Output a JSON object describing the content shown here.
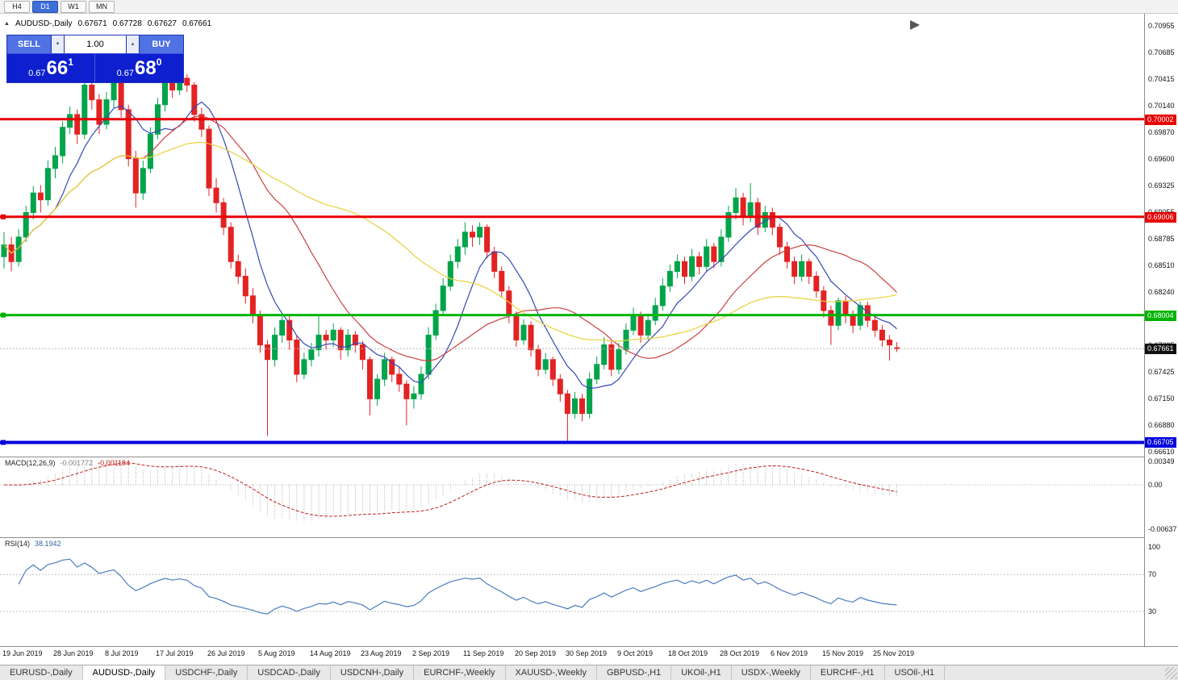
{
  "toolbar": {
    "timeframes": [
      {
        "label": "H4",
        "active": false
      },
      {
        "label": "D1",
        "active": true
      },
      {
        "label": "W1",
        "active": false
      },
      {
        "label": "MN",
        "active": false
      }
    ]
  },
  "chart_header": {
    "collapse_icon": "▲",
    "symbol": "AUDUSD-,Daily",
    "open": "0.67671",
    "high": "0.67728",
    "low": "0.67627",
    "close": "0.67661"
  },
  "trade_panel": {
    "sell_label": "SELL",
    "buy_label": "BUY",
    "volume": "1.00",
    "spin_down": "▼",
    "spin_up": "▲",
    "sell_price": {
      "prefix": "0.67",
      "big": "66",
      "sup": "1"
    },
    "buy_price": {
      "prefix": "0.67",
      "big": "68",
      "sup": "0"
    }
  },
  "axis": {
    "price_labels": [
      "0.70955",
      "0.70685",
      "0.70415",
      "0.70140",
      "0.69870",
      "0.69600",
      "0.69325",
      "0.69055",
      "0.68785",
      "0.68510",
      "0.68240",
      "0.67970",
      "0.67695",
      "0.67425",
      "0.67150",
      "0.66880",
      "0.66610"
    ]
  },
  "hlines": [
    {
      "label": "0.70002",
      "price": 0.70002,
      "color": "#e80000",
      "width": 3,
      "anchor": false
    },
    {
      "label": "0.69006",
      "price": 0.69006,
      "color": "#e80000",
      "width": 3,
      "anchor": true
    },
    {
      "label": "0.68004",
      "price": 0.68004,
      "color": "#00b400",
      "width": 3,
      "anchor": true
    },
    {
      "label": "0.66705",
      "price": 0.66705,
      "color": "#0000dd",
      "width": 4,
      "anchor": true
    }
  ],
  "current_price": {
    "label": "0.67661",
    "value": 0.67661
  },
  "macd": {
    "title": "MACD(12,26,9)",
    "main_value": "-0.001772",
    "signal_value": "-0.001184",
    "axis_labels": [
      "0.00349",
      "0.00",
      "-0.00637"
    ]
  },
  "rsi": {
    "title": "RSI(14)",
    "value": "38.1942",
    "axis_labels": [
      "100",
      "70",
      "30"
    ],
    "levels": [
      70,
      30
    ]
  },
  "dates": [
    {
      "text": "19 Jun 2019",
      "bar": 0
    },
    {
      "text": "28 Jun 2019",
      "bar": 7
    },
    {
      "text": "8 Jul 2019",
      "bar": 14
    },
    {
      "text": "17 Jul 2019",
      "bar": 21
    },
    {
      "text": "26 Jul 2019",
      "bar": 28
    },
    {
      "text": "5 Aug 2019",
      "bar": 35
    },
    {
      "text": "14 Aug 2019",
      "bar": 42
    },
    {
      "text": "23 Aug 2019",
      "bar": 49
    },
    {
      "text": "2 Sep 2019",
      "bar": 56
    },
    {
      "text": "11 Sep 2019",
      "bar": 63
    },
    {
      "text": "20 Sep 2019",
      "bar": 70
    },
    {
      "text": "30 Sep 2019",
      "bar": 77
    },
    {
      "text": "9 Oct 2019",
      "bar": 84
    },
    {
      "text": "18 Oct 2019",
      "bar": 91
    },
    {
      "text": "28 Oct 2019",
      "bar": 98
    },
    {
      "text": "6 Nov 2019",
      "bar": 105
    },
    {
      "text": "15 Nov 2019",
      "bar": 112
    },
    {
      "text": "25 Nov 2019",
      "bar": 119
    }
  ],
  "tabs": [
    {
      "label": "EURUSD-,Daily",
      "active": false
    },
    {
      "label": "AUDUSD-,Daily",
      "active": true
    },
    {
      "label": "USDCHF-,Daily",
      "active": false
    },
    {
      "label": "USDCAD-,Daily",
      "active": false
    },
    {
      "label": "USDCNH-,Daily",
      "active": false
    },
    {
      "label": "EURCHF-,Weekly",
      "active": false
    },
    {
      "label": "XAUUSD-,Weekly",
      "active": false
    },
    {
      "label": "GBPUSD-,H1",
      "active": false
    },
    {
      "label": "UKOil-,H1",
      "active": false
    },
    {
      "label": "USDX-,Weekly",
      "active": false
    },
    {
      "label": "EURCHF-,H1",
      "active": false
    },
    {
      "label": "USOil-,H1",
      "active": false
    }
  ],
  "chart_data": {
    "type": "candlestick",
    "symbol": "AUDUSD-",
    "timeframe": "Daily",
    "title": "AUDUSD-,Daily",
    "ohlc_last": {
      "open": 0.67671,
      "high": 0.67728,
      "low": 0.67627,
      "close": 0.67661
    },
    "y_axis": {
      "min": 0.6661,
      "max": 0.70955
    },
    "horizontal_levels": [
      0.70002,
      0.69006,
      0.68004,
      0.66705
    ],
    "colors": {
      "up": "#00a44a",
      "down": "#e32222"
    },
    "moving_averages": [
      {
        "name": "fast",
        "color": "#3348b5",
        "period": 8
      },
      {
        "name": "medium",
        "color": "#cc4040",
        "period": 20
      },
      {
        "name": "slow",
        "color": "#e6d23c",
        "period": 45
      }
    ],
    "indicators": [
      {
        "name": "MACD",
        "params": "12,26,9",
        "main": -0.001772,
        "signal": -0.001184,
        "axis_max": 0.00349,
        "axis_min": -0.00637
      },
      {
        "name": "RSI",
        "params": "14",
        "value": 38.1942,
        "levels": [
          30,
          70
        ]
      }
    ],
    "candles": [
      [
        0.686,
        0.6885,
        0.6848,
        0.6872
      ],
      [
        0.6872,
        0.688,
        0.6845,
        0.6855
      ],
      [
        0.6855,
        0.6888,
        0.685,
        0.688
      ],
      [
        0.688,
        0.6912,
        0.6875,
        0.6905
      ],
      [
        0.6905,
        0.6932,
        0.6898,
        0.6925
      ],
      [
        0.6925,
        0.6933,
        0.6905,
        0.6918
      ],
      [
        0.6918,
        0.6958,
        0.6912,
        0.695
      ],
      [
        0.695,
        0.6972,
        0.694,
        0.6963
      ],
      [
        0.6963,
        0.6998,
        0.6955,
        0.6992
      ],
      [
        0.6992,
        0.7013,
        0.6985,
        0.7005
      ],
      [
        0.7005,
        0.701,
        0.6975,
        0.6985
      ],
      [
        0.6985,
        0.7041,
        0.698,
        0.7035
      ],
      [
        0.7035,
        0.704,
        0.701,
        0.702
      ],
      [
        0.702,
        0.7026,
        0.6985,
        0.6995
      ],
      [
        0.6995,
        0.7028,
        0.699,
        0.702
      ],
      [
        0.702,
        0.7048,
        0.7012,
        0.704
      ],
      [
        0.704,
        0.7045,
        0.7002,
        0.701
      ],
      [
        0.701,
        0.7015,
        0.6952,
        0.696
      ],
      [
        0.696,
        0.6968,
        0.691,
        0.6925
      ],
      [
        0.6925,
        0.6958,
        0.6918,
        0.695
      ],
      [
        0.695,
        0.6992,
        0.6945,
        0.6985
      ],
      [
        0.6985,
        0.7022,
        0.698,
        0.7015
      ],
      [
        0.7015,
        0.7046,
        0.7008,
        0.704
      ],
      [
        0.704,
        0.7044,
        0.7022,
        0.703
      ],
      [
        0.703,
        0.7048,
        0.7025,
        0.7042
      ],
      [
        0.7042,
        0.7046,
        0.7028,
        0.7035
      ],
      [
        0.7035,
        0.7038,
        0.6998,
        0.7005
      ],
      [
        0.7005,
        0.7012,
        0.6982,
        0.699
      ],
      [
        0.699,
        0.6994,
        0.6922,
        0.693
      ],
      [
        0.693,
        0.694,
        0.6905,
        0.6915
      ],
      [
        0.6915,
        0.692,
        0.6882,
        0.689
      ],
      [
        0.689,
        0.6895,
        0.6848,
        0.6855
      ],
      [
        0.6855,
        0.6862,
        0.6832,
        0.684
      ],
      [
        0.684,
        0.6848,
        0.6812,
        0.682
      ],
      [
        0.682,
        0.6828,
        0.6792,
        0.68
      ],
      [
        0.68,
        0.6805,
        0.6762,
        0.677
      ],
      [
        0.677,
        0.6775,
        0.6677,
        0.6755
      ],
      [
        0.6755,
        0.6788,
        0.6748,
        0.678
      ],
      [
        0.678,
        0.6802,
        0.6772,
        0.6795
      ],
      [
        0.6795,
        0.68,
        0.6765,
        0.6775
      ],
      [
        0.6775,
        0.678,
        0.6732,
        0.674
      ],
      [
        0.674,
        0.6762,
        0.6735,
        0.6755
      ],
      [
        0.6755,
        0.6772,
        0.6748,
        0.6765
      ],
      [
        0.6765,
        0.68,
        0.6758,
        0.678
      ],
      [
        0.678,
        0.6785,
        0.6765,
        0.6775
      ],
      [
        0.6775,
        0.6792,
        0.6768,
        0.6785
      ],
      [
        0.6785,
        0.6788,
        0.6755,
        0.6765
      ],
      [
        0.6765,
        0.6786,
        0.6758,
        0.678
      ],
      [
        0.678,
        0.6784,
        0.6762,
        0.677
      ],
      [
        0.677,
        0.6774,
        0.6745,
        0.6755
      ],
      [
        0.6755,
        0.6758,
        0.6698,
        0.6715
      ],
      [
        0.6715,
        0.674,
        0.6708,
        0.6735
      ],
      [
        0.6735,
        0.6762,
        0.6728,
        0.6755
      ],
      [
        0.6755,
        0.6758,
        0.6732,
        0.674
      ],
      [
        0.674,
        0.6748,
        0.6722,
        0.673
      ],
      [
        0.673,
        0.6734,
        0.6688,
        0.6715
      ],
      [
        0.6715,
        0.6728,
        0.6705,
        0.672
      ],
      [
        0.672,
        0.6748,
        0.6714,
        0.674
      ],
      [
        0.674,
        0.6788,
        0.6735,
        0.678
      ],
      [
        0.678,
        0.6812,
        0.6775,
        0.6805
      ],
      [
        0.6805,
        0.6838,
        0.68,
        0.683
      ],
      [
        0.683,
        0.6862,
        0.6825,
        0.6855
      ],
      [
        0.6855,
        0.6878,
        0.6848,
        0.687
      ],
      [
        0.687,
        0.6895,
        0.6862,
        0.6885
      ],
      [
        0.6885,
        0.6892,
        0.687,
        0.688
      ],
      [
        0.688,
        0.6895,
        0.6872,
        0.689
      ],
      [
        0.689,
        0.6893,
        0.6858,
        0.6865
      ],
      [
        0.6865,
        0.687,
        0.6838,
        0.6845
      ],
      [
        0.6845,
        0.685,
        0.6818,
        0.6825
      ],
      [
        0.6825,
        0.683,
        0.6792,
        0.68
      ],
      [
        0.68,
        0.6804,
        0.6768,
        0.6775
      ],
      [
        0.6775,
        0.6796,
        0.677,
        0.679
      ],
      [
        0.679,
        0.6794,
        0.6758,
        0.6765
      ],
      [
        0.6765,
        0.677,
        0.6738,
        0.6745
      ],
      [
        0.6745,
        0.6762,
        0.674,
        0.6755
      ],
      [
        0.6755,
        0.6758,
        0.6728,
        0.6735
      ],
      [
        0.6735,
        0.674,
        0.6712,
        0.672
      ],
      [
        0.672,
        0.6724,
        0.6672,
        0.67
      ],
      [
        0.67,
        0.6722,
        0.6695,
        0.6715
      ],
      [
        0.6715,
        0.672,
        0.6692,
        0.67
      ],
      [
        0.67,
        0.6742,
        0.6695,
        0.6735
      ],
      [
        0.6735,
        0.6758,
        0.673,
        0.675
      ],
      [
        0.675,
        0.6778,
        0.6745,
        0.677
      ],
      [
        0.677,
        0.6774,
        0.6738,
        0.6745
      ],
      [
        0.6745,
        0.6772,
        0.674,
        0.6765
      ],
      [
        0.6765,
        0.6792,
        0.676,
        0.6785
      ],
      [
        0.6785,
        0.6808,
        0.678,
        0.68
      ],
      [
        0.68,
        0.6804,
        0.6772,
        0.678
      ],
      [
        0.678,
        0.6802,
        0.6775,
        0.6795
      ],
      [
        0.6795,
        0.6818,
        0.679,
        0.681
      ],
      [
        0.681,
        0.6838,
        0.6805,
        0.683
      ],
      [
        0.683,
        0.6852,
        0.6824,
        0.6845
      ],
      [
        0.6845,
        0.6862,
        0.6838,
        0.6855
      ],
      [
        0.6855,
        0.686,
        0.6832,
        0.684
      ],
      [
        0.684,
        0.6868,
        0.6835,
        0.686
      ],
      [
        0.686,
        0.6865,
        0.6842,
        0.685
      ],
      [
        0.685,
        0.6878,
        0.6845,
        0.687
      ],
      [
        0.687,
        0.6874,
        0.6848,
        0.6855
      ],
      [
        0.6855,
        0.6888,
        0.685,
        0.688
      ],
      [
        0.688,
        0.6912,
        0.6875,
        0.6905
      ],
      [
        0.6905,
        0.693,
        0.6898,
        0.692
      ],
      [
        0.692,
        0.6925,
        0.6892,
        0.69
      ],
      [
        0.69,
        0.6935,
        0.6895,
        0.6915
      ],
      [
        0.6915,
        0.692,
        0.6882,
        0.689
      ],
      [
        0.689,
        0.6912,
        0.6885,
        0.6905
      ],
      [
        0.6905,
        0.691,
        0.6882,
        0.689
      ],
      [
        0.689,
        0.6894,
        0.6862,
        0.687
      ],
      [
        0.687,
        0.6875,
        0.6848,
        0.6855
      ],
      [
        0.6855,
        0.686,
        0.6832,
        0.684
      ],
      [
        0.684,
        0.6862,
        0.6835,
        0.6855
      ],
      [
        0.6855,
        0.6858,
        0.6832,
        0.684
      ],
      [
        0.684,
        0.6845,
        0.6818,
        0.6825
      ],
      [
        0.6825,
        0.683,
        0.6798,
        0.6805
      ],
      [
        0.6805,
        0.681,
        0.677,
        0.679
      ],
      [
        0.679,
        0.6818,
        0.6785,
        0.6815
      ],
      [
        0.6815,
        0.682,
        0.6792,
        0.68
      ],
      [
        0.68,
        0.6805,
        0.6782,
        0.679
      ],
      [
        0.679,
        0.6814,
        0.6785,
        0.681
      ],
      [
        0.681,
        0.6814,
        0.6788,
        0.6795
      ],
      [
        0.6795,
        0.68,
        0.6778,
        0.6785
      ],
      [
        0.6785,
        0.679,
        0.6768,
        0.6775
      ],
      [
        0.6775,
        0.678,
        0.6754,
        0.677
      ],
      [
        0.67671,
        0.67728,
        0.67627,
        0.67661
      ]
    ]
  }
}
